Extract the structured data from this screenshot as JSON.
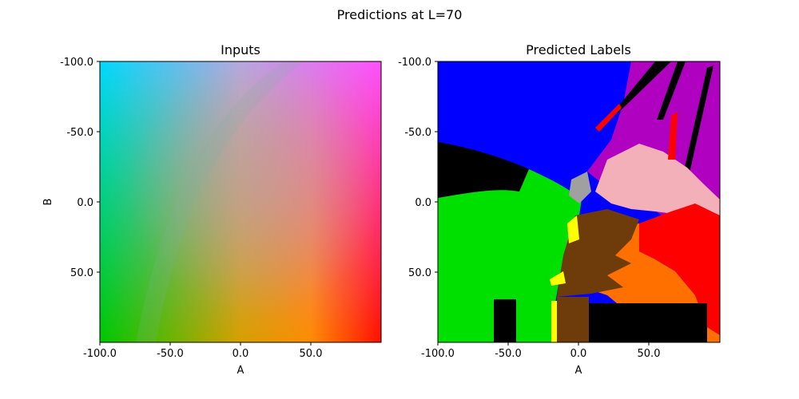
{
  "figure": {
    "suptitle": "Predictions at L=70"
  },
  "chart_data": [
    {
      "type": "heatmap",
      "title": "Inputs",
      "xlabel": "A",
      "ylabel": "B",
      "xlim": [
        -100,
        100
      ],
      "ylim": [
        -100,
        100
      ],
      "y_inverted": true,
      "x_ticks": [
        "-100.0",
        "-50.0",
        "0.0",
        "50.0"
      ],
      "y_ticks": [
        "-100.0",
        "-50.0",
        "0.0",
        "50.0"
      ],
      "description_colors": {
        "top_left": "#00d8ff",
        "top_right": "#ff55ff",
        "bottom_left": "#00c800",
        "bottom_right": "#ff1a00",
        "center": "#c0a0a0"
      }
    },
    {
      "type": "heatmap",
      "title": "Predicted Labels",
      "xlabel": "A",
      "ylabel": "",
      "xlim": [
        -100,
        100
      ],
      "ylim": [
        -100,
        100
      ],
      "y_inverted": true,
      "x_ticks": [
        "-100.0",
        "-50.0",
        "0.0",
        "50.0"
      ],
      "y_ticks": [
        "-100.0",
        "-50.0",
        "0.0",
        "50.0"
      ],
      "label_colors": {
        "blue": "#0000ff",
        "purple": "#b000c0",
        "pink": "#f4b0b8",
        "red": "#ff0000",
        "orange": "#ff7000",
        "brown": "#6e3c0a",
        "yellow": "#ffff00",
        "green": "#00e000",
        "gray": "#a0a0a0",
        "black": "#000000"
      }
    }
  ]
}
